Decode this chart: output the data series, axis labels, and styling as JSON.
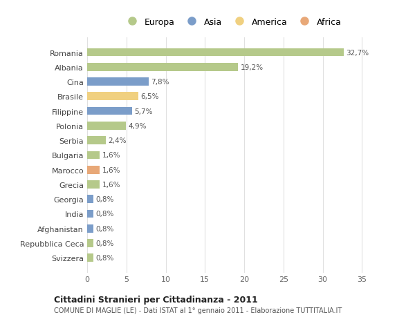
{
  "countries": [
    "Romania",
    "Albania",
    "Cina",
    "Brasile",
    "Filippine",
    "Polonia",
    "Serbia",
    "Bulgaria",
    "Marocco",
    "Grecia",
    "Georgia",
    "India",
    "Afghanistan",
    "Repubblica Ceca",
    "Svizzera"
  ],
  "values": [
    32.7,
    19.2,
    7.8,
    6.5,
    5.7,
    4.9,
    2.4,
    1.6,
    1.6,
    1.6,
    0.8,
    0.8,
    0.8,
    0.8,
    0.8
  ],
  "labels": [
    "32,7%",
    "19,2%",
    "7,8%",
    "6,5%",
    "5,7%",
    "4,9%",
    "2,4%",
    "1,6%",
    "1,6%",
    "1,6%",
    "0,8%",
    "0,8%",
    "0,8%",
    "0,8%",
    "0,8%"
  ],
  "colors": [
    "#b5c98a",
    "#b5c98a",
    "#7b9dc9",
    "#f0d080",
    "#7b9dc9",
    "#b5c98a",
    "#b5c98a",
    "#b5c98a",
    "#e8a878",
    "#b5c98a",
    "#7b9dc9",
    "#7b9dc9",
    "#7b9dc9",
    "#b5c98a",
    "#b5c98a"
  ],
  "legend_labels": [
    "Europa",
    "Asia",
    "America",
    "Africa"
  ],
  "legend_colors": [
    "#b5c98a",
    "#7b9dc9",
    "#f0d080",
    "#e8a878"
  ],
  "title": "Cittadini Stranieri per Cittadinanza - 2011",
  "subtitle": "COMUNE DI MAGLIE (LE) - Dati ISTAT al 1° gennaio 2011 - Elaborazione TUTTITALIA.IT",
  "xlim": [
    0,
    37
  ],
  "xticks": [
    0,
    5,
    10,
    15,
    20,
    25,
    30,
    35
  ],
  "bg_color": "#ffffff",
  "grid_color": "#e0e0e0",
  "bar_height": 0.55
}
